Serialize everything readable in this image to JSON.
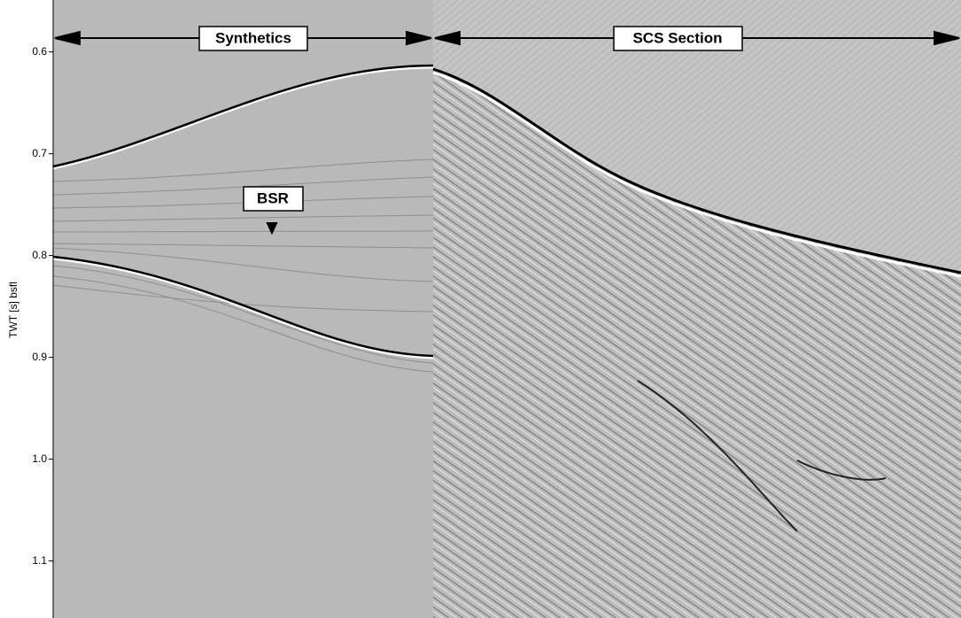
{
  "chart_data": {
    "type": "seismic-section",
    "y_label": "TWT [s] bsfl",
    "ylim": [
      0.549,
      1.156
    ],
    "y_inverted": true,
    "yticks": [
      0.6,
      0.7,
      0.8,
      0.9,
      {
        "value": 1,
        "label": "1.0"
      },
      1.1
    ],
    "annotations": [
      "Synthetics",
      "SCS Section",
      "BSR"
    ]
  }
}
